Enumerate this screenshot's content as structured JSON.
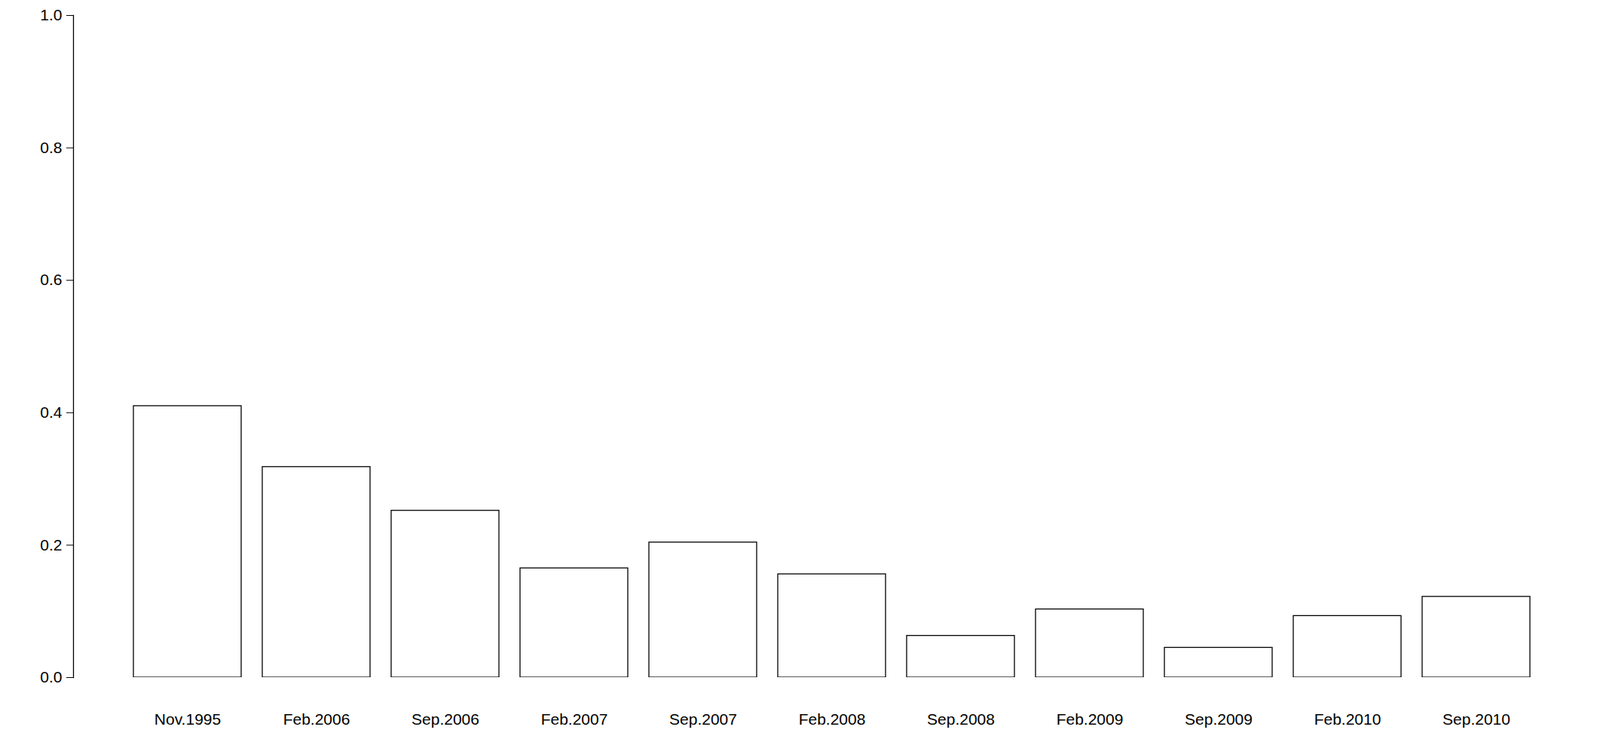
{
  "chart_data": {
    "type": "bar",
    "categories": [
      "Nov.1995",
      "Feb.2006",
      "Sep.2006",
      "Feb.2007",
      "Sep.2007",
      "Feb.2008",
      "Sep.2008",
      "Feb.2009",
      "Sep.2009",
      "Feb.2010",
      "Sep.2010"
    ],
    "values": [
      0.41,
      0.318,
      0.252,
      0.165,
      0.204,
      0.156,
      0.063,
      0.103,
      0.045,
      0.093,
      0.122
    ],
    "color": "#ffffff",
    "ylim": [
      0,
      1
    ],
    "yticks": [
      {
        "value": 0,
        "label": "0.0"
      },
      0.2,
      0.4,
      0.6,
      0.8,
      {
        "value": 1,
        "label": "1.0"
      }
    ],
    "grid": false
  }
}
